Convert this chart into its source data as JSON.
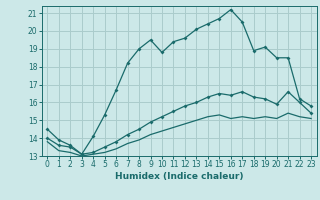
{
  "xlabel": "Humidex (Indice chaleur)",
  "bg_color": "#cce8e8",
  "grid_color": "#aacccc",
  "line_color": "#1a6b6b",
  "xlim": [
    -0.5,
    23.5
  ],
  "ylim": [
    13,
    21.4
  ],
  "xticks": [
    0,
    1,
    2,
    3,
    4,
    5,
    6,
    7,
    8,
    9,
    10,
    11,
    12,
    13,
    14,
    15,
    16,
    17,
    18,
    19,
    20,
    21,
    22,
    23
  ],
  "yticks": [
    13,
    14,
    15,
    16,
    17,
    18,
    19,
    20,
    21
  ],
  "line1_x": [
    0,
    1,
    2,
    3,
    4,
    5,
    6,
    7,
    8,
    9,
    10,
    11,
    12,
    13,
    14,
    15,
    16,
    17,
    18,
    19,
    20,
    21,
    22,
    23
  ],
  "line1_y": [
    14.5,
    13.9,
    13.6,
    13.1,
    14.1,
    15.3,
    16.7,
    18.2,
    19.0,
    19.5,
    18.8,
    19.4,
    19.6,
    20.1,
    20.4,
    20.7,
    21.2,
    20.5,
    18.9,
    19.1,
    18.5,
    18.5,
    16.2,
    15.8
  ],
  "line2_x": [
    0,
    1,
    2,
    3,
    4,
    5,
    6,
    7,
    8,
    9,
    10,
    11,
    12,
    13,
    14,
    15,
    16,
    17,
    18,
    19,
    20,
    21,
    22,
    23
  ],
  "line2_y": [
    14.0,
    13.6,
    13.5,
    13.1,
    13.2,
    13.5,
    13.8,
    14.2,
    14.5,
    14.9,
    15.2,
    15.5,
    15.8,
    16.0,
    16.3,
    16.5,
    16.4,
    16.6,
    16.3,
    16.2,
    15.9,
    16.6,
    16.0,
    15.4
  ],
  "line3_x": [
    0,
    1,
    2,
    3,
    4,
    5,
    6,
    7,
    8,
    9,
    10,
    11,
    12,
    13,
    14,
    15,
    16,
    17,
    18,
    19,
    20,
    21,
    22,
    23
  ],
  "line3_y": [
    13.8,
    13.3,
    13.2,
    13.0,
    13.1,
    13.2,
    13.4,
    13.7,
    13.9,
    14.2,
    14.4,
    14.6,
    14.8,
    15.0,
    15.2,
    15.3,
    15.1,
    15.2,
    15.1,
    15.2,
    15.1,
    15.4,
    15.2,
    15.1
  ],
  "tick_fontsize": 5.5,
  "xlabel_fontsize": 6.5
}
